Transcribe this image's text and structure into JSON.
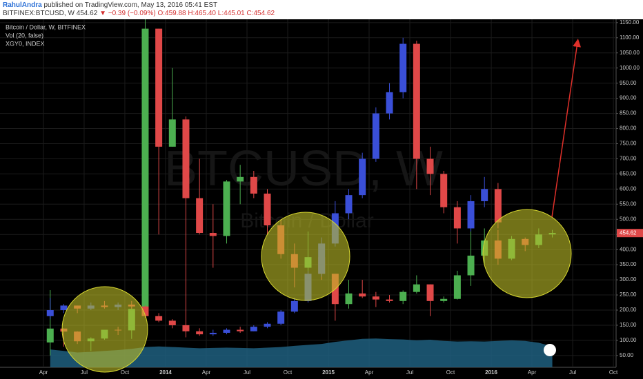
{
  "header": {
    "author": "RahulAndra",
    "published": "published on TradingView.com, May 13, 2016 05:41 EST",
    "symbol": "BITFINEX:BTCUSD, W",
    "last": "454.62",
    "change": "▼ −0.39 (−0.09%)",
    "open": "O:459.88",
    "high": "H:465.40",
    "low": "L:445.01",
    "close": "C:454.62"
  },
  "chart_data": {
    "type": "candlestick",
    "watermark": "BTCUSD, W",
    "watermark_sub": "Bitcoin / Dollar",
    "last_price": 454.62,
    "xlim": [
      -0.2,
      45.2
    ],
    "ylim": [
      11,
      1161
    ],
    "grid": true,
    "xticks": [
      {
        "value": 3,
        "label": "Apr"
      },
      {
        "value": 6,
        "label": "Jul"
      },
      {
        "value": 9,
        "label": "Oct"
      },
      {
        "value": 12,
        "label": "2014"
      },
      {
        "value": 15,
        "label": "Apr"
      },
      {
        "value": 18,
        "label": "Jul"
      },
      {
        "value": 21,
        "label": "Oct"
      },
      {
        "value": 24,
        "label": "2015"
      },
      {
        "value": 27,
        "label": "Apr"
      },
      {
        "value": 30,
        "label": "Jul"
      },
      {
        "value": 33,
        "label": "Oct"
      },
      {
        "value": 36,
        "label": "2016"
      },
      {
        "value": 39,
        "label": "Apr"
      },
      {
        "value": 42,
        "label": "Jul"
      },
      {
        "value": 45,
        "label": "Oct"
      }
    ],
    "yticks": [
      {
        "value": 50,
        "label": "50.00"
      },
      {
        "value": 100,
        "label": "100.00"
      },
      {
        "value": 150,
        "label": "150.00"
      },
      {
        "value": 200,
        "label": "200.00"
      },
      {
        "value": 250,
        "label": "250.00"
      },
      {
        "value": 300,
        "label": "300.00"
      },
      {
        "value": 350,
        "label": "350.00"
      },
      {
        "value": 400,
        "label": "400.00"
      },
      {
        "value": 450,
        "label": "450.00"
      },
      {
        "value": 500,
        "label": "500.00"
      },
      {
        "value": 550,
        "label": "550.00"
      },
      {
        "value": 600,
        "label": "600.00"
      },
      {
        "value": 650,
        "label": "650.00"
      },
      {
        "value": 700,
        "label": "700.00"
      },
      {
        "value": 750,
        "label": "750.00"
      },
      {
        "value": 800,
        "label": "800.00"
      },
      {
        "value": 850,
        "label": "850.00"
      },
      {
        "value": 900,
        "label": "900.00"
      },
      {
        "value": 950,
        "label": "950.00"
      },
      {
        "value": 1000,
        "label": "1000.00"
      },
      {
        "value": 1050,
        "label": "1050.00"
      },
      {
        "value": 1100,
        "label": "1100.00"
      },
      {
        "value": 1150,
        "label": "1150.00"
      }
    ],
    "series": [
      {
        "name": "Bitcoin / Dollar, W, BITFINEX",
        "style": "candles",
        "up_color": "#4caf50",
        "down_color": "#e04848",
        "x": [
          3.5,
          4.5,
          5.5,
          6.5,
          7.5,
          8.5,
          9.5,
          10.5,
          11.5,
          12.5,
          13.5,
          14.5,
          15.5,
          16.5,
          17.5,
          18.5,
          19.5,
          20.5,
          21.5,
          22.5,
          23.5,
          24.5,
          25.5,
          26.5,
          27.5,
          28.5,
          29.5,
          30.5,
          31.5,
          32.5,
          33.5,
          34.5,
          35.5,
          36.5,
          37.5,
          38.5,
          39.5,
          40.5
        ],
        "open": [
          93,
          139,
          129,
          97,
          106,
          135,
          133,
          204,
          1130,
          740,
          830,
          570,
          455,
          445,
          625,
          640,
          585,
          480,
          385,
          340,
          375,
          320,
          220,
          255,
          245,
          235,
          230,
          260,
          285,
          230,
          237,
          315,
          380,
          430,
          370,
          435,
          415,
          450
        ],
        "high": [
          266,
          140,
          130,
          110,
          130,
          145,
          215,
          1200,
          1130,
          1000,
          840,
          700,
          550,
          630,
          680,
          660,
          600,
          500,
          420,
          460,
          385,
          320,
          300,
          300,
          260,
          250,
          265,
          315,
          285,
          245,
          330,
          500,
          470,
          465,
          445,
          440,
          470,
          465
        ],
        "low": [
          50,
          79,
          88,
          65,
          102,
          118,
          105,
          204,
          450,
          740,
          110,
          450,
          340,
          420,
          550,
          570,
          450,
          370,
          275,
          330,
          300,
          165,
          205,
          240,
          210,
          225,
          220,
          255,
          180,
          225,
          235,
          280,
          350,
          350,
          365,
          395,
          405,
          440
        ],
        "close": [
          139,
          129,
          97,
          106,
          135,
          133,
          204,
          1130,
          740,
          830,
          570,
          455,
          445,
          625,
          640,
          585,
          480,
          385,
          340,
          375,
          320,
          220,
          255,
          245,
          235,
          230,
          260,
          285,
          230,
          237,
          315,
          380,
          430,
          370,
          435,
          415,
          450,
          455
        ]
      },
      {
        "name": "Vol (20, false)",
        "style": "area",
        "color": "#1f5f7f",
        "x": [
          3.5,
          4.5,
          5.5,
          6.5,
          7.5,
          8.5,
          9.5,
          10.5,
          11.5,
          12.5,
          13.5,
          14.5,
          15.5,
          16.5,
          17.5,
          18.5,
          19.5,
          20.5,
          21.5,
          22.5,
          23.5,
          24.5,
          25.5,
          26.5,
          27.5,
          28.5,
          29.5,
          30.5,
          31.5,
          32.5,
          33.5,
          34.5,
          35.5,
          36.5,
          37.5,
          38.5,
          39.5,
          40.5
        ],
        "values": [
          70,
          65,
          60,
          62,
          65,
          68,
          72,
          78,
          80,
          78,
          76,
          74,
          75,
          76,
          75,
          74,
          76,
          78,
          82,
          85,
          88,
          95,
          100,
          105,
          106,
          104,
          103,
          100,
          102,
          98,
          96,
          97,
          96,
          98,
          100,
          98,
          92,
          80
        ]
      },
      {
        "name": "XGY0, INDEX",
        "style": "candles",
        "up_color": "#3a4fd8",
        "down_color": "#e04848",
        "x": [
          3.5,
          4.5,
          5.5,
          6.5,
          7.5,
          8.5,
          9.5,
          10.5,
          11.5,
          12.5,
          13.5,
          14.5,
          15.5,
          16.5,
          17.5,
          18.5,
          19.5,
          20.5,
          21.5,
          22.5,
          23.5,
          24.5,
          25.5,
          26.5,
          27.5,
          28.5,
          29.5,
          30.5,
          31.5,
          32.5,
          33.5,
          34.5,
          35.5,
          36.5
        ],
        "open": [
          180,
          200,
          215,
          205,
          215,
          210,
          218,
          212,
          180,
          165,
          150,
          130,
          120,
          125,
          135,
          130,
          145,
          155,
          195,
          230,
          320,
          420,
          520,
          580,
          700,
          850,
          920,
          1080,
          700,
          650,
          540,
          470,
          560,
          600
        ],
        "high": [
          240,
          220,
          215,
          225,
          230,
          225,
          230,
          215,
          190,
          170,
          155,
          140,
          135,
          140,
          145,
          150,
          160,
          200,
          240,
          330,
          440,
          560,
          600,
          720,
          870,
          950,
          1100,
          1090,
          740,
          660,
          560,
          580,
          640,
          620
        ],
        "low": [
          170,
          190,
          190,
          200,
          205,
          200,
          205,
          175,
          160,
          140,
          125,
          115,
          115,
          120,
          125,
          130,
          140,
          150,
          190,
          225,
          310,
          410,
          500,
          570,
          690,
          830,
          900,
          600,
          580,
          520,
          420,
          460,
          540,
          470
        ],
        "close": [
          200,
          215,
          205,
          215,
          210,
          218,
          212,
          180,
          165,
          150,
          130,
          120,
          125,
          135,
          130,
          145,
          155,
          195,
          230,
          320,
          420,
          520,
          580,
          700,
          850,
          920,
          1080,
          700,
          650,
          540,
          470,
          560,
          600,
          490
        ]
      }
    ]
  }
}
